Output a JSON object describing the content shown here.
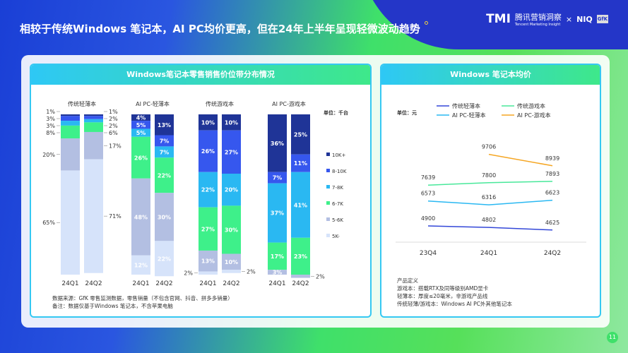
{
  "title": "相较于传统Windows 笔记本，AI PC均价更高，但在24年上半年呈现轻微波动趋势",
  "logo": {
    "brand": "TMI",
    "name": "腾讯营销洞察",
    "sub": "Tencent Marketing Insight",
    "x": "×",
    "niq": "NIQ",
    "gfk": "GfK"
  },
  "page_number": "11",
  "colors": {
    "10K+": "#1f3497",
    "8-10K": "#3657ee",
    "7-8K": "#2ab8f2",
    "6-7K": "#3ef08a",
    "5-6K": "#b3bfe2",
    "5K-": "#d6e3fa"
  },
  "chart_data": [
    {
      "type": "bar",
      "stacked": true,
      "title": "Windows笔记本零售销售价位带分布情况",
      "unit": "单位：千台",
      "legend": [
        "10K+",
        "8-10K",
        "7-8K",
        "6-7K",
        "5-6K",
        "5K-"
      ],
      "legend_placement": "right",
      "groups": [
        {
          "name": "传统轻薄本",
          "bars": [
            {
              "x": "24Q1",
              "values": [
                1,
                3,
                3,
                8,
                20,
                65
              ]
            },
            {
              "x": "24Q2",
              "values": [
                1,
                2,
                2,
                6,
                17,
                71
              ]
            }
          ]
        },
        {
          "name": "AI PC-轻薄本",
          "bars": [
            {
              "x": "24Q1",
              "values": [
                4,
                5,
                5,
                26,
                48,
                12
              ]
            },
            {
              "x": "24Q2",
              "values": [
                13,
                7,
                7,
                22,
                30,
                22
              ]
            }
          ]
        },
        {
          "name": "传统游戏本",
          "bars": [
            {
              "x": "24Q1",
              "values": [
                10,
                26,
                22,
                27,
                13,
                2
              ]
            },
            {
              "x": "24Q2",
              "values": [
                10,
                27,
                20,
                30,
                10,
                2
              ]
            }
          ]
        },
        {
          "name": "AI PC-游戏本",
          "bars": [
            {
              "x": "24Q1",
              "values": [
                36,
                7,
                37,
                17,
                3,
                0
              ]
            },
            {
              "x": "24Q2",
              "values": [
                25,
                11,
                41,
                23,
                2,
                0
              ]
            }
          ]
        }
      ],
      "notes": [
        "数据来源：GfK 零售监测数据，零售销量（不包含官网、抖音、拼多多销量）",
        "备注：数据仅基于Windows 笔记本，不含苹果电脑"
      ]
    },
    {
      "type": "line",
      "title": "Windows 笔记本均价",
      "unit": "单位：元",
      "categories": [
        "23Q4",
        "24Q1",
        "24Q2"
      ],
      "series": [
        {
          "name": "传统轻薄本",
          "color": "#3347d8",
          "values": [
            4900,
            4802,
            4625
          ]
        },
        {
          "name": "传统游戏本",
          "color": "#48e89a",
          "values": [
            7639,
            7800,
            7893
          ]
        },
        {
          "name": "AI PC-轻薄本",
          "color": "#2ab8f2",
          "values": [
            6573,
            6316,
            6623
          ]
        },
        {
          "name": "AI PC-游戏本",
          "color": "#f5a623",
          "values": [
            null,
            9706,
            8939
          ]
        }
      ],
      "notes": [
        "产品定义",
        "游戏本：搭载RTX及同等级别AMD显卡",
        "轻薄本：厚度≤20毫米，非游戏产品线",
        "传统轻薄/游戏本：Windows AI PC外其他笔记本"
      ]
    }
  ]
}
